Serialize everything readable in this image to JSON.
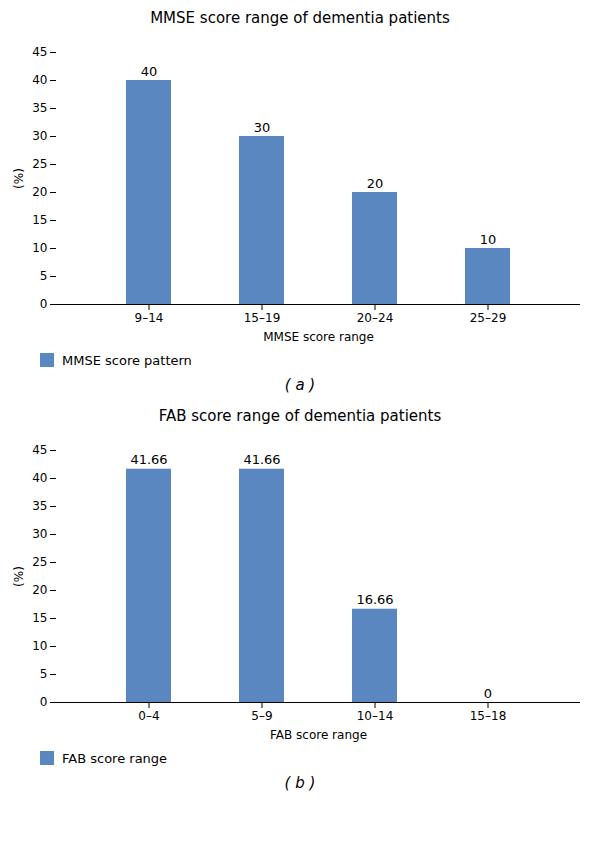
{
  "chart_data": [
    {
      "type": "bar",
      "title": "MMSE score range of dementia patients",
      "x_label": "MMSE score range",
      "y_label": "(%)",
      "categories": [
        "9–14",
        "15–19",
        "20–24",
        "25–29"
      ],
      "series": [
        {
          "name": "MMSE score pattern",
          "color": "#5b87c0",
          "values": [
            40,
            30,
            20,
            10
          ]
        }
      ],
      "ylim": [
        0,
        45
      ],
      "yticks": [
        0,
        5,
        10,
        15,
        20,
        25,
        30,
        35,
        40,
        45
      ],
      "grid": false,
      "legend": "bottom",
      "data_labels": true,
      "annotations": [
        "( a )"
      ]
    },
    {
      "type": "bar",
      "title": "FAB score range of dementia patients",
      "x_label": "FAB score range",
      "y_label": "(%)",
      "categories": [
        "0–4",
        "5–9",
        "10–14",
        "15–18"
      ],
      "series": [
        {
          "name": "FAB score range",
          "color": "#5b87c0",
          "values": [
            41.66,
            41.66,
            16.66,
            0
          ]
        }
      ],
      "ylim": [
        0,
        45
      ],
      "yticks": [
        0,
        5,
        10,
        15,
        20,
        25,
        30,
        35,
        40,
        45
      ],
      "grid": false,
      "legend": "bottom",
      "data_labels": true,
      "annotations": [
        "( b )"
      ]
    }
  ]
}
